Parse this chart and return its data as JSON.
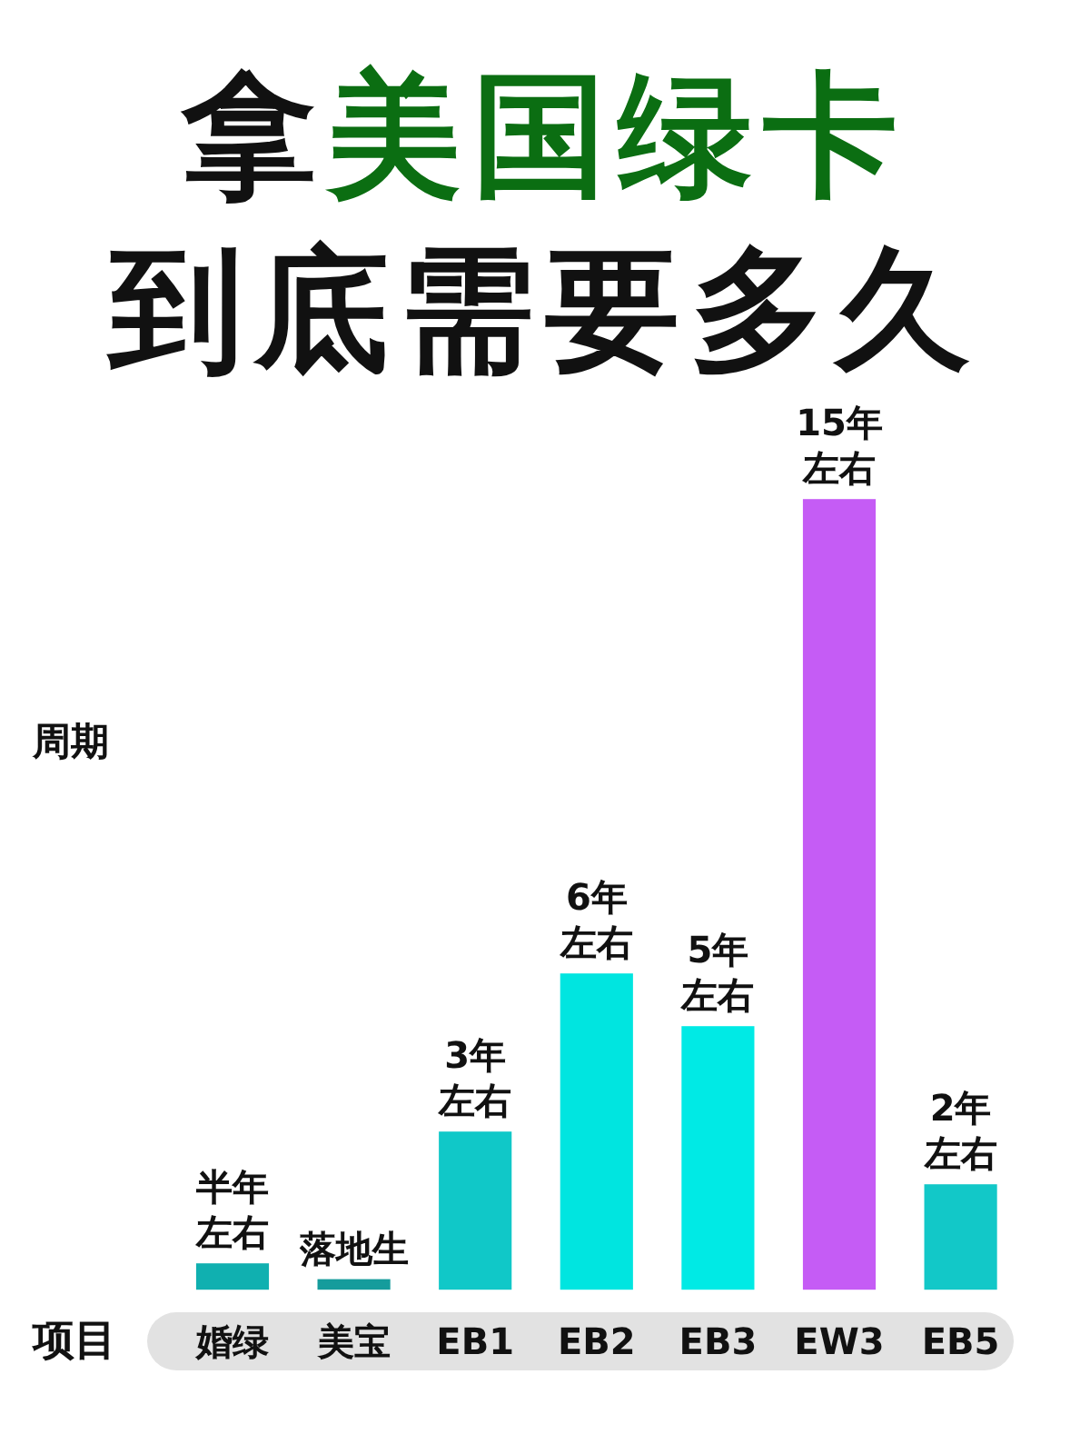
{
  "chart_data": {
    "type": "bar",
    "title": "拿美国绿卡到底需要多久",
    "xlabel": "项目",
    "ylabel": "周期",
    "categories": [
      "婚绿",
      "美宝",
      "EB1",
      "EB2",
      "EB3",
      "EW3",
      "EB5"
    ],
    "values": [
      0.5,
      0.2,
      3,
      6,
      5,
      15,
      2
    ],
    "colors": [
      "#10b0b0",
      "#159c9c",
      "#10c8c8",
      "#00e5e0",
      "#00eae5",
      "#c55cf5",
      "#12c8c8"
    ],
    "value_labels": [
      "半年左右",
      "落地生",
      "3年左右",
      "6年左右",
      "5年左右",
      "15年左右",
      "2年左右"
    ]
  }
}
